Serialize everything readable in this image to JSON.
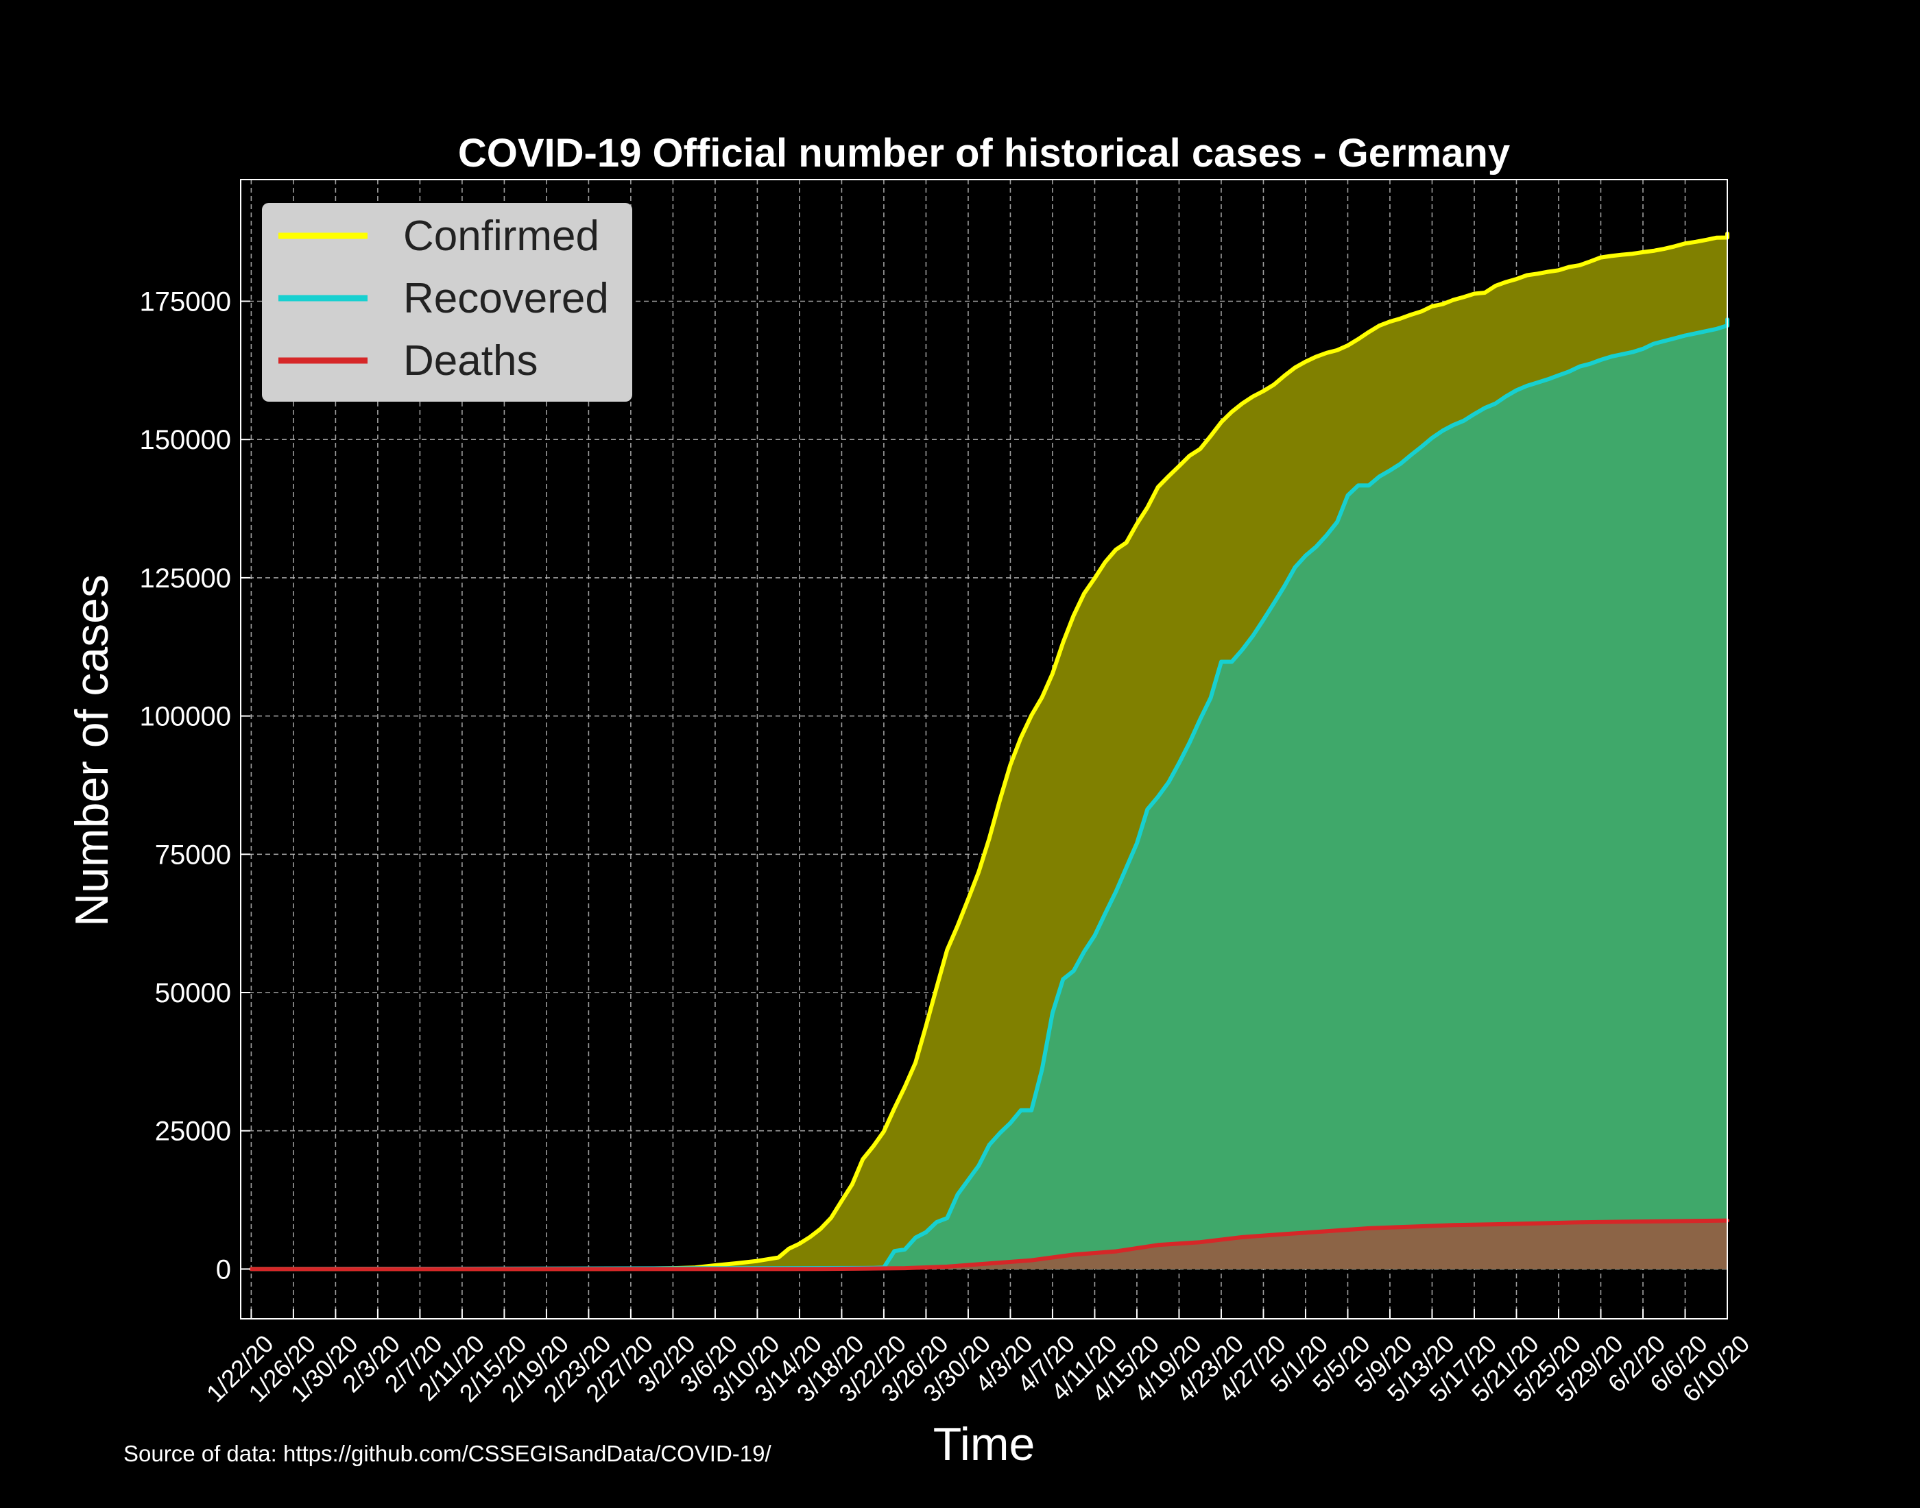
{
  "chart_data": {
    "type": "area",
    "title": "COVID-19 Official number of historical cases - Germany",
    "xlabel": "Time",
    "ylabel": "Number of cases",
    "source_note": "Source of data: https://github.com/CSSEGISandData/COVID-19/",
    "x_start": "1/22/20",
    "x_end": "6/10/20",
    "x_ticks": [
      "1/22/20",
      "1/26/20",
      "1/30/20",
      "2/3/20",
      "2/7/20",
      "2/11/20",
      "2/15/20",
      "2/19/20",
      "2/23/20",
      "2/27/20",
      "3/2/20",
      "3/6/20",
      "3/10/20",
      "3/14/20",
      "3/18/20",
      "3/22/20",
      "3/26/20",
      "3/30/20",
      "4/3/20",
      "4/7/20",
      "4/11/20",
      "4/15/20",
      "4/19/20",
      "4/23/20",
      "4/27/20",
      "5/1/20",
      "5/5/20",
      "5/9/20",
      "5/13/20",
      "5/17/20",
      "5/21/20",
      "5/25/20",
      "5/29/20",
      "6/2/20",
      "6/6/20",
      "6/10/20"
    ],
    "y_ticks": [
      0,
      25000,
      50000,
      75000,
      100000,
      125000,
      150000,
      175000
    ],
    "y_tick_labels": [
      "0",
      "25000",
      "50000",
      "75000",
      "100000",
      "125000",
      "150000",
      "175000"
    ],
    "ylim": [
      -9000,
      197000
    ],
    "grid": true,
    "legend_position": "top-left",
    "colors": {
      "background": "#000000",
      "confirmed_line": "#ffff00",
      "confirmed_fill": "#808000",
      "recovered_line": "#17d0d0",
      "recovered_fill": "#3fa86a",
      "deaths_line": "#d62728",
      "deaths_fill": "#8c6446",
      "legend_bg": "#d0d0d0",
      "grid": "#bbbbbb"
    },
    "series": [
      {
        "name": "Confirmed",
        "points": [
          [
            "1/22/20",
            0
          ],
          [
            "1/27/20",
            1
          ],
          [
            "2/1/20",
            8
          ],
          [
            "2/10/20",
            14
          ],
          [
            "2/20/20",
            16
          ],
          [
            "2/25/20",
            18
          ],
          [
            "2/28/20",
            79
          ],
          [
            "3/2/20",
            159
          ],
          [
            "3/4/20",
            262
          ],
          [
            "3/6/20",
            670
          ],
          [
            "3/8/20",
            1040
          ],
          [
            "3/10/20",
            1457
          ],
          [
            "3/12/20",
            2078
          ],
          [
            "3/13/20",
            3675
          ],
          [
            "3/14/20",
            4585
          ],
          [
            "3/15/20",
            5795
          ],
          [
            "3/16/20",
            7272
          ],
          [
            "3/17/20",
            9257
          ],
          [
            "3/18/20",
            12327
          ],
          [
            "3/19/20",
            15320
          ],
          [
            "3/20/20",
            19848
          ],
          [
            "3/21/20",
            22213
          ],
          [
            "3/22/20",
            24873
          ],
          [
            "3/23/20",
            29056
          ],
          [
            "3/24/20",
            32986
          ],
          [
            "3/25/20",
            37323
          ],
          [
            "3/26/20",
            43938
          ],
          [
            "3/27/20",
            50871
          ],
          [
            "3/28/20",
            57695
          ],
          [
            "3/29/20",
            62095
          ],
          [
            "3/30/20",
            66885
          ],
          [
            "3/31/20",
            71808
          ],
          [
            "4/1/20",
            77872
          ],
          [
            "4/2/20",
            84794
          ],
          [
            "4/3/20",
            91159
          ],
          [
            "4/4/20",
            96092
          ],
          [
            "4/5/20",
            100123
          ],
          [
            "4/6/20",
            103374
          ],
          [
            "4/7/20",
            107663
          ],
          [
            "4/8/20",
            113296
          ],
          [
            "4/9/20",
            118181
          ],
          [
            "4/10/20",
            122171
          ],
          [
            "4/11/20",
            124908
          ],
          [
            "4/12/20",
            127854
          ],
          [
            "4/13/20",
            130072
          ],
          [
            "4/14/20",
            131359
          ],
          [
            "4/15/20",
            134753
          ],
          [
            "4/16/20",
            137698
          ],
          [
            "4/17/20",
            141397
          ],
          [
            "4/18/20",
            143342
          ],
          [
            "4/19/20",
            145184
          ],
          [
            "4/20/20",
            147065
          ],
          [
            "4/21/20",
            148291
          ],
          [
            "4/22/20",
            150648
          ],
          [
            "4/23/20",
            153129
          ],
          [
            "4/24/20",
            154999
          ],
          [
            "4/25/20",
            156513
          ],
          [
            "4/26/20",
            157770
          ],
          [
            "4/27/20",
            158758
          ],
          [
            "4/28/20",
            159912
          ],
          [
            "4/29/20",
            161539
          ],
          [
            "4/30/20",
            163009
          ],
          [
            "5/1/20",
            164077
          ],
          [
            "5/2/20",
            164967
          ],
          [
            "5/3/20",
            165664
          ],
          [
            "5/4/20",
            166152
          ],
          [
            "5/5/20",
            167007
          ],
          [
            "5/6/20",
            168162
          ],
          [
            "5/7/20",
            169430
          ],
          [
            "5/8/20",
            170588
          ],
          [
            "5/9/20",
            171324
          ],
          [
            "5/10/20",
            171879
          ],
          [
            "5/11/20",
            172576
          ],
          [
            "5/12/20",
            173171
          ],
          [
            "5/13/20",
            174098
          ],
          [
            "5/14/20",
            174478
          ],
          [
            "5/15/20",
            175233
          ],
          [
            "5/16/20",
            175752
          ],
          [
            "5/17/20",
            176369
          ],
          [
            "5/18/20",
            176551
          ],
          [
            "5/19/20",
            177778
          ],
          [
            "5/20/20",
            178473
          ],
          [
            "5/21/20",
            179021
          ],
          [
            "5/22/20",
            179710
          ],
          [
            "5/23/20",
            179986
          ],
          [
            "5/24/20",
            180328
          ],
          [
            "5/25/20",
            180600
          ],
          [
            "5/26/20",
            181200
          ],
          [
            "5/27/20",
            181524
          ],
          [
            "5/28/20",
            182196
          ],
          [
            "5/29/20",
            182922
          ],
          [
            "5/30/20",
            183189
          ],
          [
            "5/31/20",
            183410
          ],
          [
            "6/1/20",
            183594
          ],
          [
            "6/2/20",
            183879
          ],
          [
            "6/3/20",
            184121
          ],
          [
            "6/4/20",
            184472
          ],
          [
            "6/5/20",
            184924
          ],
          [
            "6/6/20",
            185450
          ],
          [
            "6/7/20",
            185750
          ],
          [
            "6/8/20",
            186109
          ],
          [
            "6/9/20",
            186506
          ],
          [
            "6/10/20",
            186522
          ],
          [
            "6/11/20",
            187184
          ],
          [
            "6/12/20",
            187226
          ]
        ]
      },
      {
        "name": "Recovered",
        "points": [
          [
            "1/22/20",
            0
          ],
          [
            "3/20/20",
            180
          ],
          [
            "3/21/20",
            209
          ],
          [
            "3/22/20",
            266
          ],
          [
            "3/23/20",
            3243
          ],
          [
            "3/24/20",
            3547
          ],
          [
            "3/25/20",
            5673
          ],
          [
            "3/26/20",
            6658
          ],
          [
            "3/27/20",
            8481
          ],
          [
            "3/28/20",
            9211
          ],
          [
            "3/29/20",
            13500
          ],
          [
            "3/30/20",
            16100
          ],
          [
            "3/31/20",
            18700
          ],
          [
            "4/1/20",
            22440
          ],
          [
            "4/2/20",
            24575
          ],
          [
            "4/3/20",
            26400
          ],
          [
            "4/4/20",
            28700
          ],
          [
            "4/5/20",
            28700
          ],
          [
            "4/6/20",
            36081
          ],
          [
            "4/7/20",
            46300
          ],
          [
            "4/8/20",
            52407
          ],
          [
            "4/9/20",
            53913
          ],
          [
            "4/10/20",
            57400
          ],
          [
            "4/11/20",
            60300
          ],
          [
            "4/12/20",
            64300
          ],
          [
            "4/13/20",
            68200
          ],
          [
            "4/14/20",
            72600
          ],
          [
            "4/15/20",
            77000
          ],
          [
            "4/16/20",
            83114
          ],
          [
            "4/17/20",
            85400
          ],
          [
            "4/18/20",
            88000
          ],
          [
            "4/19/20",
            91500
          ],
          [
            "4/20/20",
            95200
          ],
          [
            "4/21/20",
            99400
          ],
          [
            "4/22/20",
            103300
          ],
          [
            "4/23/20",
            109800
          ],
          [
            "4/24/20",
            109800
          ],
          [
            "4/25/20",
            112000
          ],
          [
            "4/26/20",
            114500
          ],
          [
            "4/27/20",
            117400
          ],
          [
            "4/28/20",
            120400
          ],
          [
            "4/29/20",
            123500
          ],
          [
            "4/30/20",
            126900
          ],
          [
            "5/1/20",
            129000
          ],
          [
            "5/2/20",
            130600
          ],
          [
            "5/3/20",
            132700
          ],
          [
            "5/4/20",
            135100
          ],
          [
            "5/5/20",
            139900
          ],
          [
            "5/6/20",
            141700
          ],
          [
            "5/7/20",
            141700
          ],
          [
            "5/8/20",
            143300
          ],
          [
            "5/9/20",
            144400
          ],
          [
            "5/10/20",
            145600
          ],
          [
            "5/11/20",
            147200
          ],
          [
            "5/12/20",
            148700
          ],
          [
            "5/13/20",
            150300
          ],
          [
            "5/14/20",
            151600
          ],
          [
            "5/15/20",
            152600
          ],
          [
            "5/16/20",
            153400
          ],
          [
            "5/17/20",
            154600
          ],
          [
            "5/18/20",
            155700
          ],
          [
            "5/19/20",
            156500
          ],
          [
            "5/20/20",
            157800
          ],
          [
            "5/21/20",
            158900
          ],
          [
            "5/22/20",
            159700
          ],
          [
            "5/23/20",
            160300
          ],
          [
            "5/24/20",
            160900
          ],
          [
            "5/25/20",
            161600
          ],
          [
            "5/26/20",
            162300
          ],
          [
            "5/27/20",
            163200
          ],
          [
            "5/28/20",
            163700
          ],
          [
            "5/29/20",
            164400
          ],
          [
            "5/30/20",
            165000
          ],
          [
            "5/31/20",
            165400
          ],
          [
            "6/1/20",
            165800
          ],
          [
            "6/2/20",
            166400
          ],
          [
            "6/3/20",
            167300
          ],
          [
            "6/4/20",
            167800
          ],
          [
            "6/5/20",
            168300
          ],
          [
            "6/6/20",
            168800
          ],
          [
            "6/7/20",
            169200
          ],
          [
            "6/8/20",
            169600
          ],
          [
            "6/9/20",
            170000
          ],
          [
            "6/10/20",
            170600
          ],
          [
            "6/11/20",
            171200
          ],
          [
            "6/12/20",
            171700
          ]
        ]
      },
      {
        "name": "Deaths",
        "points": [
          [
            "1/22/20",
            0
          ],
          [
            "3/9/20",
            2
          ],
          [
            "3/16/20",
            17
          ],
          [
            "3/20/20",
            67
          ],
          [
            "3/24/20",
            157
          ],
          [
            "3/28/20",
            433
          ],
          [
            "4/1/20",
            1017
          ],
          [
            "4/5/20",
            1584
          ],
          [
            "4/9/20",
            2607
          ],
          [
            "4/13/20",
            3194
          ],
          [
            "4/17/20",
            4352
          ],
          [
            "4/21/20",
            4862
          ],
          [
            "4/25/20",
            5760
          ],
          [
            "4/29/20",
            6314
          ],
          [
            "5/3/20",
            6831
          ],
          [
            "5/7/20",
            7369
          ],
          [
            "5/11/20",
            7661
          ],
          [
            "5/15/20",
            7938
          ],
          [
            "5/19/20",
            8090
          ],
          [
            "5/23/20",
            8270
          ],
          [
            "5/27/20",
            8450
          ],
          [
            "5/31/20",
            8557
          ],
          [
            "6/4/20",
            8635
          ],
          [
            "6/8/20",
            8729
          ],
          [
            "6/12/20",
            8776
          ]
        ]
      }
    ]
  }
}
